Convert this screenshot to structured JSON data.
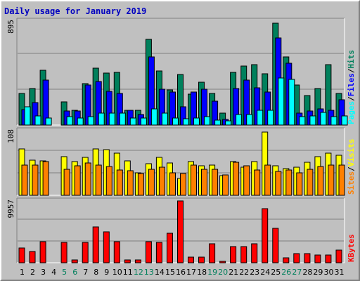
{
  "chart_data": {
    "type": "bar",
    "title": "Daily usage for January 2019",
    "categories": [
      "1",
      "2",
      "3",
      "4",
      "5",
      "6",
      "7",
      "8",
      "9",
      "10",
      "11",
      "12",
      "13",
      "14",
      "15",
      "16",
      "17",
      "18",
      "19",
      "20",
      "21",
      "22",
      "23",
      "24",
      "25",
      "26",
      "27",
      "28",
      "29",
      "30",
      "31"
    ],
    "weekend_days": [
      "5",
      "6",
      "12",
      "13",
      "19",
      "20",
      "26",
      "27"
    ],
    "panels": [
      {
        "name": "hits",
        "ymax_label": "895",
        "ymax": 895,
        "series": [
          {
            "name": "Hits",
            "color": "#00805c",
            "values": [
              270,
              315,
              470,
              0,
              200,
              125,
              355,
              490,
              450,
              455,
              125,
              130,
              740,
              465,
              305,
              435,
              265,
              370,
              270,
              100,
              455,
              510,
              520,
              440,
              875,
              585,
              345,
              255,
              315,
              518,
              270
            ]
          },
          {
            "name": "Files",
            "color": "#0000ff",
            "values": [
              135,
              195,
              390,
              0,
              120,
              120,
              345,
              375,
              290,
              270,
              125,
              90,
              585,
              310,
              285,
              160,
              285,
              310,
              205,
              50,
              315,
              385,
              320,
              285,
              750,
              530,
              105,
              120,
              140,
              130,
              220
            ]
          },
          {
            "name": "Pages",
            "color": "#00ffff",
            "values": [
              155,
              80,
              60,
              0,
              70,
              60,
              75,
              100,
              100,
              100,
              60,
              60,
              140,
              105,
              60,
              55,
              60,
              75,
              40,
              35,
              90,
              90,
              125,
              125,
              405,
              395,
              70,
              80,
              110,
              70,
              80
            ]
          }
        ],
        "labels": [
          {
            "name": "Pages",
            "color": "#00ffff"
          },
          {
            "name": "Files",
            "color": "#0000ff"
          },
          {
            "name": "Hits",
            "color": "#00805c"
          }
        ],
        "separator": "/"
      },
      {
        "name": "visits",
        "ymax_label": "108",
        "ymax": 108,
        "series": [
          {
            "name": "Visits",
            "color": "#ffff00",
            "values": [
              77,
              59,
              57,
              0,
              64,
              56,
              63,
              78,
              76,
              71,
              57,
              37,
              53,
              63,
              54,
              28,
              56,
              49,
              50,
              33,
              56,
              47,
              56,
              106,
              49,
              45,
              47,
              55,
              65,
              70,
              67
            ]
          },
          {
            "name": "Sites",
            "color": "#ff8000",
            "values": [
              51,
              51,
              56,
              0,
              43,
              49,
              54,
              51,
              48,
              42,
              41,
              36,
              43,
              47,
              37,
              36,
              51,
              44,
              44,
              34,
              55,
              49,
              42,
              51,
              40,
              42,
              38,
              43,
              48,
              50,
              51
            ]
          }
        ],
        "labels": [
          {
            "name": "Sites",
            "color": "#ff8000"
          },
          {
            "name": "Visits",
            "color": "#ffff00"
          }
        ],
        "separator": "/"
      },
      {
        "name": "kbytes",
        "ymax_label": "9957",
        "ymax": 9957,
        "series": [
          {
            "name": "KBytes",
            "color": "#ff0000",
            "values": [
              2400,
              1800,
              3400,
              0,
              3300,
              400,
              3300,
              5800,
              5000,
              3400,
              400,
              400,
              3400,
              3300,
              4700,
              9957,
              900,
              950,
              3000,
              200,
              2600,
              2600,
              3000,
              8700,
              5600,
              800,
              1500,
              1500,
              1300,
              1300,
              2000
            ]
          }
        ],
        "labels": [
          {
            "name": "KBytes",
            "color": "#ff0000"
          }
        ],
        "separator": ""
      }
    ],
    "axis_color_weekday": "#000000",
    "axis_color_weekend": "#00805c",
    "panel_bg": "#c0c0c0",
    "gridline_color": "#808080"
  }
}
